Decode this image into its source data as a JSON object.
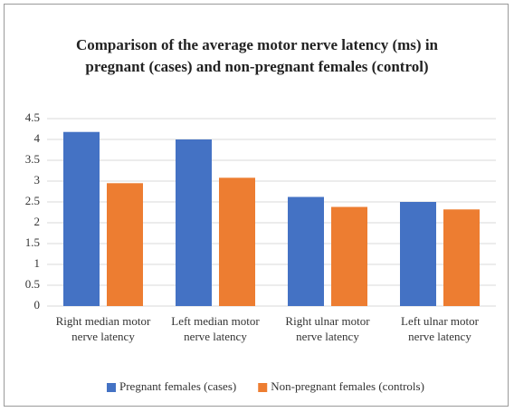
{
  "chart_data": {
    "type": "bar",
    "title": "Comparison of  the average motor nerve latency (ms) in pregnant (cases) and non-pregnant females (control)",
    "categories": [
      "Right median motor nerve latency",
      "Left median motor nerve latency",
      "Right ulnar motor nerve latency",
      "Left ulnar motor nerve latency"
    ],
    "series": [
      {
        "name": "Pregnant females (cases)",
        "color": "#4472c4",
        "values": [
          4.18,
          4.0,
          2.62,
          2.5
        ]
      },
      {
        "name": "Non-pregnant females (controls)",
        "color": "#ed7d31",
        "values": [
          2.95,
          3.08,
          2.38,
          2.32
        ]
      }
    ],
    "ylim": [
      0,
      4.5
    ],
    "yticks": [
      0,
      0.5,
      1,
      1.5,
      2,
      2.5,
      3,
      3.5,
      4,
      4.5
    ],
    "grid": true,
    "legend": "bottom"
  }
}
